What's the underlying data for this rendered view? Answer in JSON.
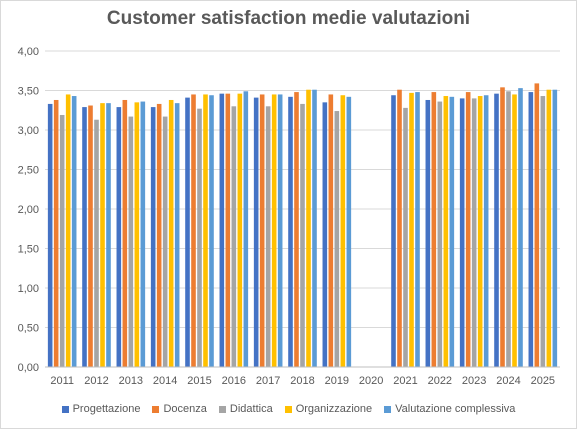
{
  "chart_data": {
    "type": "bar",
    "title": "Customer satisfaction medie valutazioni",
    "categories": [
      "2011",
      "2012",
      "2013",
      "2014",
      "2015",
      "2016",
      "2017",
      "2018",
      "2019",
      "2020",
      "2021",
      "2022",
      "2023",
      "2024",
      "2025"
    ],
    "series": [
      {
        "name": "Progettazione",
        "color": "#4472c4",
        "values": [
          3.33,
          3.29,
          3.29,
          3.29,
          3.41,
          3.46,
          3.41,
          3.42,
          3.35,
          null,
          3.44,
          3.38,
          3.4,
          3.46,
          3.48
        ]
      },
      {
        "name": "Docenza",
        "color": "#ed7d31",
        "values": [
          3.38,
          3.31,
          3.38,
          3.33,
          3.45,
          3.46,
          3.45,
          3.48,
          3.45,
          null,
          3.51,
          3.48,
          3.48,
          3.54,
          3.59
        ]
      },
      {
        "name": "Didattica",
        "color": "#a5a5a5",
        "values": [
          3.19,
          3.13,
          3.17,
          3.17,
          3.27,
          3.3,
          3.3,
          3.33,
          3.24,
          null,
          3.28,
          3.36,
          3.4,
          3.49,
          3.43
        ]
      },
      {
        "name": "Organizzazione",
        "color": "#ffc000",
        "values": [
          3.45,
          3.34,
          3.35,
          3.38,
          3.45,
          3.46,
          3.45,
          3.51,
          3.44,
          null,
          3.47,
          3.43,
          3.43,
          3.45,
          3.51
        ]
      },
      {
        "name": "Valutazione complessiva",
        "color": "#5b9bd5",
        "values": [
          3.43,
          3.34,
          3.36,
          3.34,
          3.44,
          3.49,
          3.45,
          3.51,
          3.42,
          null,
          3.48,
          3.42,
          3.44,
          3.53,
          3.51
        ]
      }
    ],
    "yticks": [
      "0,00",
      "0,50",
      "1,00",
      "1,50",
      "2,00",
      "2,50",
      "3,00",
      "3,50",
      "4,00"
    ],
    "ylim": [
      0,
      4
    ],
    "grid": true,
    "legend_position": "bottom"
  }
}
